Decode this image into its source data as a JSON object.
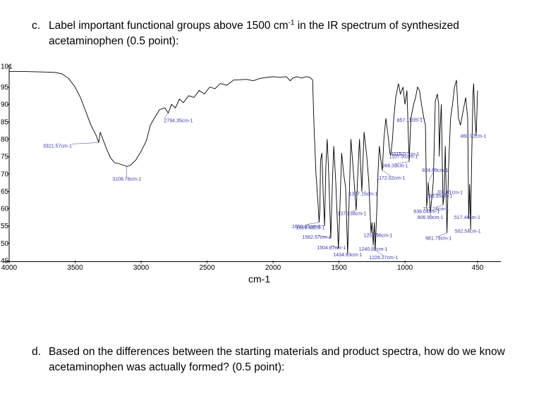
{
  "questions": {
    "c": {
      "letter": "c.",
      "line1_pre": "Label important functional groups above 1500 cm",
      "line1_sup": "-1",
      "line1_post": " in the IR spectrum of synthesized",
      "line2": "acetaminophen (0.5 point):"
    },
    "d": {
      "letter": "d.",
      "line1": "Based on the differences between the starting materials and product spectra, how do we know",
      "line2": "acetaminophen was actually formed? (0.5 point):"
    }
  },
  "colors": {
    "trace": "#000000",
    "peak_label": "#3a3aa8"
  },
  "chart_data": {
    "type": "line",
    "xlabel": "cm-1",
    "ylabel": "",
    "xlim": [
      4000,
      450
    ],
    "ylim": [
      45,
      101
    ],
    "x_reversed": true,
    "grid": false,
    "x_ticks": [
      4000,
      3500,
      3000,
      2500,
      2000,
      1500,
      1000,
      450
    ],
    "y_ticks": [
      45,
      50,
      55,
      60,
      65,
      70,
      75,
      80,
      85,
      90,
      95,
      101
    ],
    "series": [
      {
        "points": [
          [
            4000,
            99.5
          ],
          [
            3900,
            99.5
          ],
          [
            3800,
            99.4
          ],
          [
            3700,
            99.3
          ],
          [
            3650,
            99.2
          ],
          [
            3600,
            98.8
          ],
          [
            3550,
            97.5
          ],
          [
            3500,
            95
          ],
          [
            3460,
            92
          ],
          [
            3420,
            88
          ],
          [
            3380,
            84
          ],
          [
            3340,
            81
          ],
          [
            3321.57,
            79
          ],
          [
            3310,
            82
          ],
          [
            3290,
            80
          ],
          [
            3260,
            77
          ],
          [
            3230,
            74.5
          ],
          [
            3200,
            73.2
          ],
          [
            3160,
            72.8
          ],
          [
            3120,
            72.3
          ],
          [
            3108.78,
            72.1
          ],
          [
            3080,
            72.5
          ],
          [
            3040,
            74
          ],
          [
            3000,
            76.5
          ],
          [
            2960,
            79.5
          ],
          [
            2930,
            84
          ],
          [
            2900,
            86
          ],
          [
            2860,
            88.5
          ],
          [
            2820,
            89
          ],
          [
            2794.35,
            87.5
          ],
          [
            2770,
            90
          ],
          [
            2740,
            89
          ],
          [
            2710,
            91.5
          ],
          [
            2680,
            90.5
          ],
          [
            2640,
            92.5
          ],
          [
            2600,
            92
          ],
          [
            2560,
            94
          ],
          [
            2520,
            93
          ],
          [
            2480,
            95
          ],
          [
            2440,
            94.5
          ],
          [
            2400,
            96
          ],
          [
            2350,
            95.5
          ],
          [
            2300,
            97
          ],
          [
            2200,
            97.2
          ],
          [
            2150,
            96.8
          ],
          [
            2100,
            97.5
          ],
          [
            2000,
            98
          ],
          [
            1950,
            97.8
          ],
          [
            1900,
            98
          ],
          [
            1870,
            96.8
          ],
          [
            1850,
            97.6
          ],
          [
            1820,
            98
          ],
          [
            1780,
            97.6
          ],
          [
            1750,
            98
          ],
          [
            1720,
            97.8
          ],
          [
            1700,
            97
          ],
          [
            1690,
            84
          ],
          [
            1675,
            70
          ],
          [
            1660,
            62
          ],
          [
            1650.85,
            56
          ],
          [
            1645,
            60
          ],
          [
            1640,
            74
          ],
          [
            1630,
            76
          ],
          [
            1620,
            64
          ],
          [
            1609.48,
            55
          ],
          [
            1600,
            72
          ],
          [
            1590,
            80
          ],
          [
            1580,
            72
          ],
          [
            1562.57,
            51.5
          ],
          [
            1550,
            68
          ],
          [
            1540,
            78
          ],
          [
            1525,
            68
          ],
          [
            1504.87,
            48.5
          ],
          [
            1495,
            58
          ],
          [
            1480,
            76
          ],
          [
            1465,
            70
          ],
          [
            1450,
            66
          ],
          [
            1434.83,
            46.8
          ],
          [
            1425,
            60
          ],
          [
            1410,
            80
          ],
          [
            1390,
            70
          ],
          [
            1370.38,
            59.5
          ],
          [
            1355,
            72
          ],
          [
            1345,
            80
          ],
          [
            1327.15,
            65
          ],
          [
            1310,
            82
          ],
          [
            1290,
            75
          ],
          [
            1275,
            68
          ],
          [
            1257.96,
            53
          ],
          [
            1250,
            56
          ],
          [
            1240.82,
            49.5
          ],
          [
            1232,
            56
          ],
          [
            1226.27,
            48
          ],
          [
            1215,
            58
          ],
          [
            1205,
            70
          ],
          [
            1195,
            78
          ],
          [
            1183,
            74
          ],
          [
            1172.02,
            71
          ],
          [
            1160,
            80
          ],
          [
            1145,
            86
          ],
          [
            1125,
            80
          ],
          [
            1115.07,
            76
          ],
          [
            1107.91,
            75.5
          ],
          [
            1095,
            80
          ],
          [
            1085,
            86
          ],
          [
            1070,
            92
          ],
          [
            1050,
            96
          ],
          [
            1035,
            93
          ],
          [
            1015,
            95
          ],
          [
            1000,
            90
          ],
          [
            985,
            94
          ],
          [
            968.39,
            73.5
          ],
          [
            955,
            86
          ],
          [
            935,
            90
          ],
          [
            920,
            92
          ],
          [
            905,
            95
          ],
          [
            890,
            94
          ],
          [
            875,
            90
          ],
          [
            857.11,
            86
          ],
          [
            845,
            84
          ],
          [
            836.04,
            60.5
          ],
          [
            828,
            64
          ],
          [
            824.69,
            67.5
          ],
          [
            815,
            63
          ],
          [
            806.99,
            59
          ],
          [
            797,
            63
          ],
          [
            793.95,
            64
          ],
          [
            785,
            68
          ],
          [
            770,
            91
          ],
          [
            755,
            93
          ],
          [
            745,
            90
          ],
          [
            740,
            75
          ],
          [
            735,
            82
          ],
          [
            725,
            90
          ],
          [
            712.24,
            61
          ],
          [
            703.61,
            64
          ],
          [
            695,
            78
          ],
          [
            681.79,
            53
          ],
          [
            670,
            72
          ],
          [
            655,
            86
          ],
          [
            640,
            90
          ],
          [
            625,
            95
          ],
          [
            610,
            97
          ],
          [
            595,
            86
          ],
          [
            580,
            84
          ],
          [
            560,
            88
          ],
          [
            540,
            92
          ],
          [
            525,
            86
          ],
          [
            517.44,
            57
          ],
          [
            510,
            67
          ],
          [
            502.54,
            54
          ],
          [
            495,
            74
          ],
          [
            485,
            93
          ],
          [
            480,
            96
          ],
          [
            470,
            86
          ],
          [
            460.92,
            81
          ],
          [
            455,
            88
          ],
          [
            450,
            94
          ]
        ]
      }
    ],
    "annotations": [
      {
        "text": "3321.57cm-1",
        "x": 3321.57,
        "y": 79
      },
      {
        "text": "3108.78cm-1",
        "x": 3108.78,
        "y": 72.1
      },
      {
        "text": "2794.35cm-1",
        "x": 2794.35,
        "y": 87.5
      },
      {
        "text": "1650.85cm-1",
        "x": 1650.85,
        "y": 56
      },
      {
        "text": "1609.48cm-1",
        "x": 1609.48,
        "y": 55
      },
      {
        "text": "1562.57cm-1",
        "x": 1562.57,
        "y": 51.5
      },
      {
        "text": "1504.87cm-1",
        "x": 1504.87,
        "y": 48.5
      },
      {
        "text": "1434.83cm-1",
        "x": 1434.83,
        "y": 46.8
      },
      {
        "text": "1370.38cm-1",
        "x": 1370.38,
        "y": 59.5
      },
      {
        "text": "1327.15cm-1",
        "x": 1327.15,
        "y": 65
      },
      {
        "text": "1257.96cm-1",
        "x": 1257.96,
        "y": 53
      },
      {
        "text": "1240.82cm-1",
        "x": 1240.82,
        "y": 49.5
      },
      {
        "text": "1226.27cm-1",
        "x": 1226.27,
        "y": 48
      },
      {
        "text": "1172.02cm-1",
        "x": 1172.02,
        "y": 71
      },
      {
        "text": "1115.07cm-1",
        "x": 1115.07,
        "y": 76
      },
      {
        "text": "1107.91cm-1",
        "x": 1107.91,
        "y": 75.5
      },
      {
        "text": "968.39cm-1",
        "x": 968.39,
        "y": 73.5
      },
      {
        "text": "857.11cm-1",
        "x": 857.11,
        "y": 86
      },
      {
        "text": "836.04cm-1",
        "x": 836.04,
        "y": 60.5
      },
      {
        "text": "824.69cm-1",
        "x": 824.69,
        "y": 67.5
      },
      {
        "text": "806.99cm-1",
        "x": 806.99,
        "y": 59
      },
      {
        "text": "793.95cm-1",
        "x": 793.95,
        "y": 64
      },
      {
        "text": "712.24cm-1",
        "x": 712.24,
        "y": 61
      },
      {
        "text": "703.61cm-1",
        "x": 703.61,
        "y": 64
      },
      {
        "text": "681.79cm-1",
        "x": 681.79,
        "y": 53
      },
      {
        "text": "517.44cm-1",
        "x": 517.44,
        "y": 57
      },
      {
        "text": "502.54cm-1",
        "x": 502.54,
        "y": 54
      },
      {
        "text": "460.92cm-1",
        "x": 460.92,
        "y": 81
      }
    ]
  }
}
